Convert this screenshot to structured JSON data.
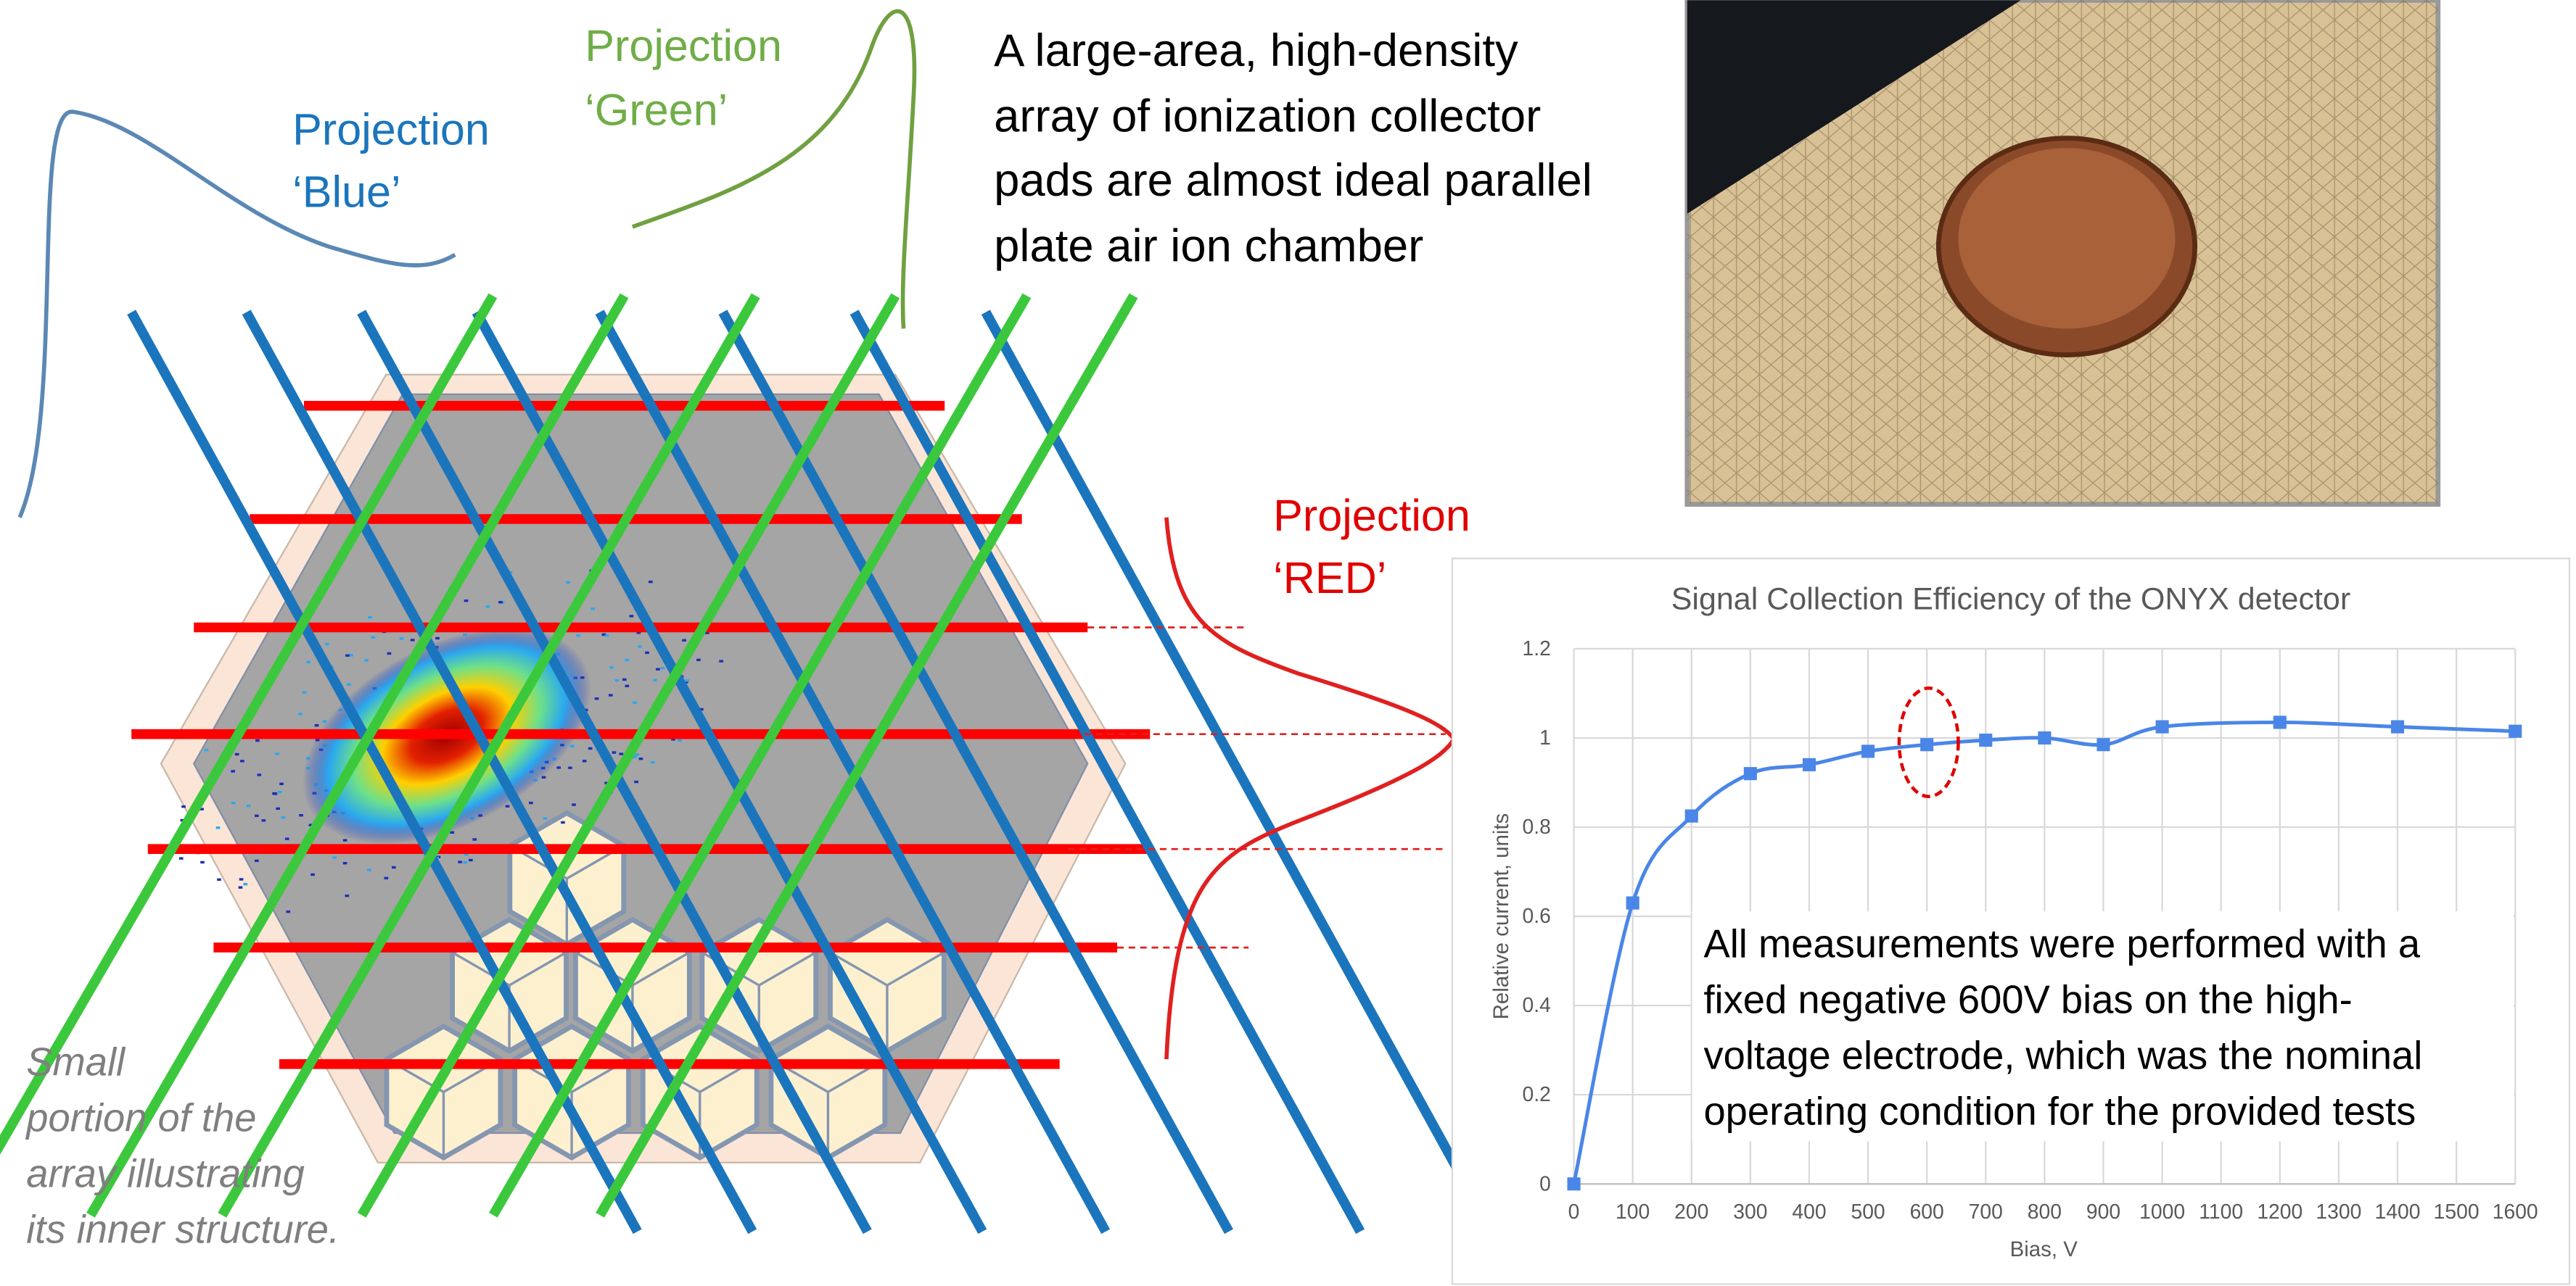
{
  "slide": {
    "projection_blue": [
      "Projection",
      "‘Blue’"
    ],
    "projection_green": [
      "Projection",
      "‘Green’"
    ],
    "projection_red": [
      "Projection",
      "‘RED’"
    ],
    "description": [
      "A large-area, high-density",
      "array of ionization collector",
      "pads are almost ideal parallel",
      "plate air ion chamber"
    ],
    "caption": [
      "Small",
      "portion of the",
      "array illustrating",
      "its inner structure."
    ]
  },
  "chart_data": {
    "type": "line",
    "title": "Signal Collection Efficiency of the ONYX detector",
    "x_label": "Bias, V",
    "y_label": "Relative current, units",
    "x": [
      0,
      100,
      200,
      300,
      400,
      500,
      600,
      700,
      800,
      900,
      1000,
      1200,
      1400,
      1600
    ],
    "values": [
      0,
      0.63,
      0.825,
      0.92,
      0.94,
      0.97,
      0.985,
      0.995,
      1.0,
      0.985,
      1.025,
      1.035,
      1.025,
      1.015
    ],
    "color": "#4a86e8",
    "xlim": [
      0,
      1600
    ],
    "xticks": [
      0,
      100,
      200,
      300,
      400,
      500,
      600,
      700,
      800,
      900,
      1000,
      1100,
      1200,
      1300,
      1400,
      1500,
      1600
    ],
    "ylim": [
      0,
      1.2
    ],
    "yticks": [
      0,
      0.2,
      0.4,
      0.6,
      0.8,
      1,
      1.2
    ],
    "grid": true,
    "annotation": [
      "All measurements were performed with a",
      "fixed negative 600V bias on the high-",
      "voltage electrode, which was the nominal",
      "operating condition for the provided tests"
    ]
  }
}
